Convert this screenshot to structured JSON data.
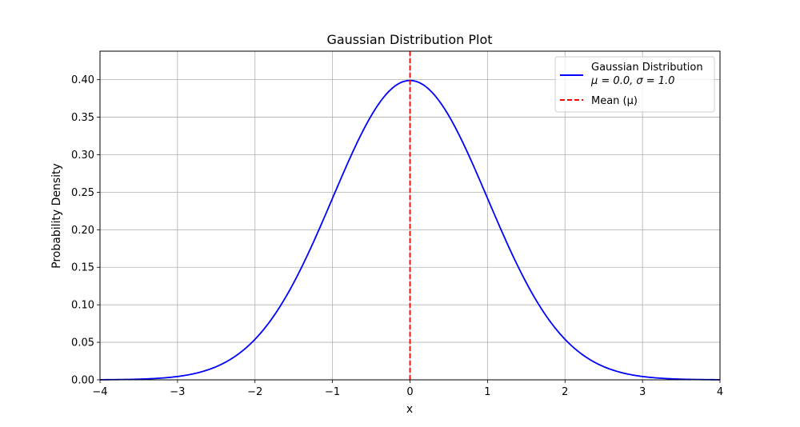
{
  "chart_data": {
    "type": "line",
    "title": "Gaussian Distribution Plot",
    "xlabel": "x",
    "ylabel": "Probability Density",
    "xlim": [
      -4,
      4
    ],
    "ylim": [
      0,
      0.438
    ],
    "grid": true,
    "legend_position": "top-right",
    "x_ticks": [
      -4,
      -3,
      -2,
      -1,
      0,
      1,
      2,
      3,
      4
    ],
    "x_tick_labels": [
      "−4",
      "−3",
      "−2",
      "−1",
      "0",
      "1",
      "2",
      "3",
      "4"
    ],
    "y_ticks": [
      0,
      0.05,
      0.1,
      0.15,
      0.2,
      0.25,
      0.3,
      0.35,
      0.4
    ],
    "y_tick_labels": [
      "0.00",
      "0.05",
      "0.10",
      "0.15",
      "0.20",
      "0.25",
      "0.30",
      "0.35",
      "0.40"
    ],
    "series": [
      {
        "name_line1": "Gaussian Distribution",
        "name_line2": "μ = 0.0, σ = 1.0",
        "color": "#0000ff",
        "style": "solid",
        "mu": 0.0,
        "sigma": 1.0,
        "x": [
          -4,
          -3.8,
          -3.6,
          -3.4,
          -3.2,
          -3,
          -2.8,
          -2.6,
          -2.4,
          -2.2,
          -2,
          -1.8,
          -1.6,
          -1.4,
          -1.2,
          -1,
          -0.8,
          -0.6,
          -0.4,
          -0.2,
          0,
          0.2,
          0.4,
          0.6,
          0.8,
          1,
          1.2,
          1.4,
          1.6,
          1.8,
          2,
          2.2,
          2.4,
          2.6,
          2.8,
          3,
          3.2,
          3.4,
          3.6,
          3.8,
          4
        ],
        "y": [
          0.0001,
          0.0003,
          0.0006,
          0.0012,
          0.0024,
          0.0044,
          0.0079,
          0.0136,
          0.0224,
          0.0355,
          0.054,
          0.079,
          0.1109,
          0.1497,
          0.1942,
          0.242,
          0.2897,
          0.3332,
          0.3683,
          0.391,
          0.3989,
          0.391,
          0.3683,
          0.3332,
          0.2897,
          0.242,
          0.1942,
          0.1497,
          0.1109,
          0.079,
          0.054,
          0.0355,
          0.0224,
          0.0136,
          0.0079,
          0.0044,
          0.0024,
          0.0012,
          0.0006,
          0.0003,
          0.0001
        ]
      },
      {
        "name": "Mean (μ)",
        "color": "#ff0000",
        "style": "dashed",
        "x_value": 0
      }
    ]
  }
}
